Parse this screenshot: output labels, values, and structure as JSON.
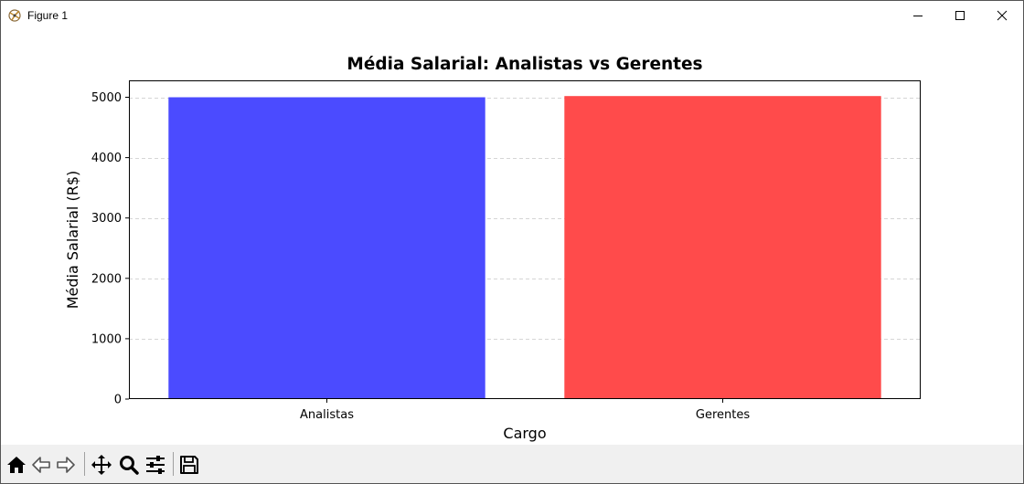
{
  "window": {
    "title": "Figure 1",
    "icons": {
      "app": "matplotlib-figure-icon",
      "minimize": "minimize-icon",
      "maximize": "maximize-icon",
      "close": "close-icon"
    }
  },
  "chart_data": {
    "type": "bar",
    "title": "Média Salarial: Analistas vs Gerentes",
    "xlabel": "Cargo",
    "ylabel": "Média Salarial (R$)",
    "categories": [
      "Analistas",
      "Gerentes"
    ],
    "values": [
      5000,
      5020
    ],
    "colors": [
      "#4b4bff",
      "#ff4b4b"
    ],
    "ylim": [
      0,
      5280
    ],
    "yticks": [
      0,
      1000,
      2000,
      3000,
      4000,
      5000
    ],
    "grid": "y-dashed"
  },
  "toolbar": {
    "buttons": [
      {
        "icon": "home-icon"
      },
      {
        "icon": "back-arrow-icon"
      },
      {
        "icon": "forward-arrow-icon"
      },
      {
        "icon": "pan-icon"
      },
      {
        "icon": "zoom-icon"
      },
      {
        "icon": "configure-subplots-icon"
      },
      {
        "icon": "save-icon"
      }
    ]
  }
}
